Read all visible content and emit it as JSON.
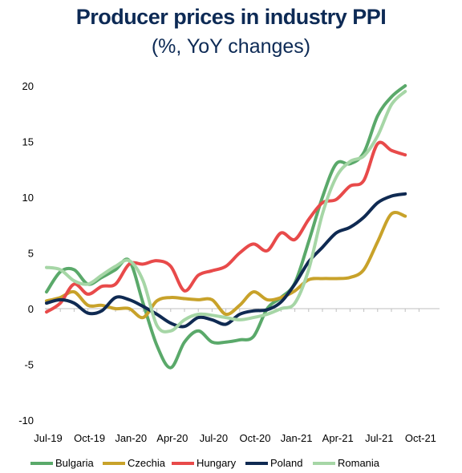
{
  "chart_data": {
    "type": "line",
    "title": "Producer prices in industry PPI",
    "subtitle": "(%, YoY changes)",
    "xlabel": "",
    "ylabel": "",
    "ylim": [
      -10,
      20
    ],
    "yticks": [
      20,
      15,
      10,
      5,
      0,
      -5,
      -10
    ],
    "xtick_labels": [
      "Jul-19",
      "Oct-19",
      "Jan-20",
      "Apr-20",
      "Jul-20",
      "Oct-20",
      "Jan-21",
      "Apr-21",
      "Jul-21",
      "Oct-21"
    ],
    "x": [
      "Jul-19",
      "Aug-19",
      "Sep-19",
      "Oct-19",
      "Nov-19",
      "Dec-19",
      "Jan-20",
      "Feb-20",
      "Mar-20",
      "Apr-20",
      "May-20",
      "Jun-20",
      "Jul-20",
      "Aug-20",
      "Sep-20",
      "Oct-20",
      "Nov-20",
      "Dec-20",
      "Jan-21",
      "Feb-21",
      "Mar-21",
      "Apr-21",
      "May-21",
      "Jun-21",
      "Jul-21",
      "Aug-21",
      "Sep-21"
    ],
    "legend_position": "bottom",
    "grid": false,
    "series": [
      {
        "name": "Bulgaria",
        "color": "#5aa96a",
        "values": [
          1.5,
          3.3,
          3.5,
          2.2,
          2.8,
          3.5,
          4.3,
          0.5,
          -3.3,
          -5.3,
          -3.0,
          -2.0,
          -3.0,
          -3.0,
          -2.8,
          -2.5,
          0.0,
          1.0,
          2.3,
          6.0,
          10.0,
          13.0,
          13.0,
          14.0,
          17.3,
          19.0,
          20.0
        ]
      },
      {
        "name": "Czechia",
        "color": "#c8a22a",
        "values": [
          0.7,
          1.0,
          1.5,
          0.3,
          0.3,
          0.0,
          0.0,
          -0.8,
          0.7,
          1.0,
          0.9,
          0.8,
          0.8,
          -0.5,
          0.3,
          1.5,
          0.8,
          1.0,
          1.6,
          2.6,
          2.7,
          2.7,
          2.8,
          3.5,
          6.0,
          8.5,
          8.3
        ]
      },
      {
        "name": "Hungary",
        "color": "#e84a4a",
        "values": [
          -0.3,
          0.5,
          2.2,
          1.3,
          2.0,
          2.2,
          4.0,
          4.0,
          4.3,
          3.8,
          1.6,
          3.0,
          3.4,
          3.8,
          5.0,
          5.8,
          5.2,
          6.8,
          6.2,
          8.0,
          9.5,
          9.8,
          11.0,
          11.5,
          14.8,
          14.2,
          13.8
        ]
      },
      {
        "name": "Poland",
        "color": "#0f2a52",
        "values": [
          0.5,
          0.8,
          0.5,
          -0.4,
          -0.2,
          1.0,
          0.8,
          0.2,
          -0.5,
          -1.3,
          -1.6,
          -0.8,
          -1.0,
          -1.4,
          -0.5,
          -0.2,
          -0.1,
          0.6,
          2.2,
          4.2,
          5.5,
          6.8,
          7.3,
          8.2,
          9.5,
          10.1,
          10.3
        ]
      },
      {
        "name": "Romania",
        "color": "#a6d6a6",
        "values": [
          3.7,
          3.5,
          2.5,
          2.2,
          3.0,
          3.8,
          4.3,
          2.5,
          -1.5,
          -2.0,
          -1.0,
          -0.5,
          -0.6,
          -0.8,
          -1.0,
          -0.8,
          -0.5,
          0.0,
          0.5,
          3.5,
          8.5,
          11.8,
          13.2,
          13.7,
          15.5,
          18.3,
          19.5
        ]
      }
    ]
  }
}
